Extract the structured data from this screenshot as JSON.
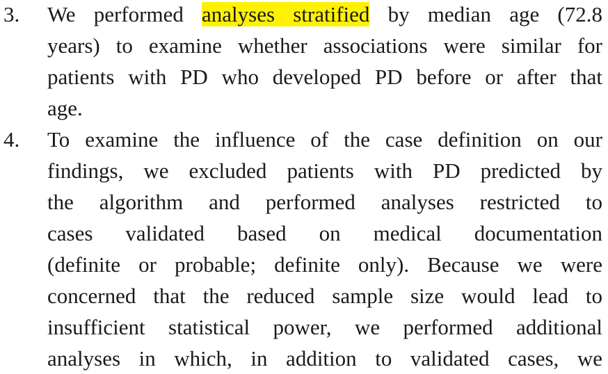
{
  "items": [
    {
      "number": "3.",
      "first_line": {
        "before": "We performed",
        "highlight": "analyses stratified",
        "after": "by median age (72.8"
      },
      "lines": [
        "years) to examine whether associations were similar for",
        "patients with PD who developed PD before or after that",
        "age."
      ]
    },
    {
      "number": "4.",
      "lines": [
        "To examine the influence of the case definition on our",
        "findings, we excluded patients with PD predicted by",
        "the algorithm and performed analyses restricted to",
        "cases validated based on medical documentation",
        "(definite or probable; definite only). Because we were",
        "concerned that the reduced sample size would lead to",
        "insufficient statistical power, we performed additional",
        "analyses in which, in addition to validated cases, we"
      ]
    }
  ]
}
